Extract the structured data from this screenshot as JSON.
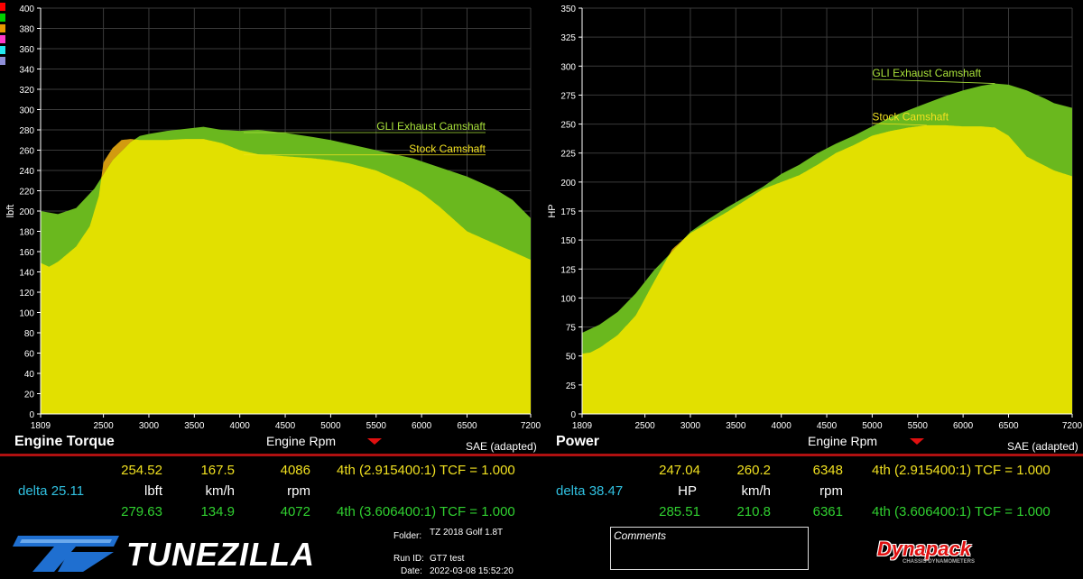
{
  "swatch_colors": [
    "#ff0000",
    "#00d000",
    "#e79a00",
    "#ff3ac8",
    "#22e8f0",
    "#8f8fd8"
  ],
  "colors": {
    "gli_fill": "#6ab81e",
    "stock_fill": "#e2e000",
    "gli_label": "#a8e03a",
    "stock_label": "#f0e020",
    "orange_overlap": "#d29a10"
  },
  "footer": {
    "sae": "SAE (adapted)",
    "torque": {
      "run1": {
        "value": "254.52",
        "speed": "167.5",
        "rpm": "4086",
        "gear": "4th (2.915400:1) TCF = 1.000"
      },
      "delta": "delta 25.11",
      "units": {
        "value": "lbft",
        "speed": "km/h",
        "rpm": "rpm"
      },
      "run2": {
        "value": "279.63",
        "speed": "134.9",
        "rpm": "4072",
        "gear": "4th (3.606400:1) TCF = 1.000"
      }
    },
    "power": {
      "run1": {
        "value": "247.04",
        "speed": "260.2",
        "rpm": "6348",
        "gear": "4th (2.915400:1) TCF = 1.000"
      },
      "delta": "delta 38.47",
      "units": {
        "value": "HP",
        "speed": "km/h",
        "rpm": "rpm"
      },
      "run2": {
        "value": "285.51",
        "speed": "210.8",
        "rpm": "6361",
        "gear": "4th (3.606400:1) TCF = 1.000"
      }
    },
    "brand": "TUNEZILLA",
    "folder_label": "Folder:",
    "folder_value": "TZ 2018 Golf 1.8T",
    "runid_label": "Run ID:",
    "runid_value": "GT7 test",
    "date_label": "Date:",
    "date_value": "2022-03-08 15:52:20",
    "comments_label": "Comments",
    "dynapack": "Dynapack",
    "dynapack_sub": "CHASSIS DYNAMOMETERS"
  },
  "chart_data": [
    {
      "type": "area",
      "title": "Engine Torque",
      "xlabel": "Engine Rpm",
      "ylabel": "lbft",
      "xlim": [
        1809,
        7200
      ],
      "ylim": [
        0,
        400
      ],
      "xticks": [
        1809,
        2500,
        3000,
        3500,
        4000,
        4500,
        5000,
        5500,
        6000,
        6500,
        7200
      ],
      "yticks": [
        0,
        20,
        40,
        60,
        80,
        100,
        120,
        140,
        160,
        180,
        200,
        220,
        240,
        260,
        280,
        300,
        320,
        340,
        360,
        380,
        400
      ],
      "grid": true,
      "series": [
        {
          "name": "GLI Exhaust Camshaft",
          "x": [
            1809,
            2000,
            2200,
            2400,
            2600,
            2800,
            2900,
            3000,
            3200,
            3400,
            3600,
            3800,
            4000,
            4200,
            4500,
            4800,
            5000,
            5300,
            5600,
            5900,
            6200,
            6500,
            6800,
            7000,
            7200
          ],
          "y": [
            200,
            197,
            203,
            222,
            250,
            268,
            274,
            276,
            279,
            281,
            283,
            280,
            279,
            280,
            277,
            273,
            270,
            264,
            258,
            252,
            243,
            234,
            222,
            211,
            193
          ]
        },
        {
          "name": "Stock Camshaft",
          "x": [
            1809,
            1900,
            2000,
            2200,
            2350,
            2450,
            2500,
            2600,
            2700,
            2800,
            2900,
            3000,
            3200,
            3400,
            3600,
            3800,
            4000,
            4200,
            4500,
            4800,
            5000,
            5200,
            5500,
            5800,
            6000,
            6200,
            6500,
            6800,
            7000,
            7200
          ],
          "y": [
            149,
            145,
            150,
            165,
            185,
            215,
            248,
            262,
            270,
            271,
            270,
            270,
            270,
            271,
            271,
            267,
            260,
            256,
            254,
            252,
            250,
            247,
            240,
            228,
            218,
            204,
            180,
            168,
            160,
            152
          ]
        }
      ],
      "annotations": [
        {
          "text": "GLI Exhaust Camshaft",
          "x": 4100,
          "y": 280
        },
        {
          "text": "Stock Camshaft",
          "x": 4100,
          "y": 258
        }
      ]
    },
    {
      "type": "area",
      "title": "Power",
      "xlabel": "Engine Rpm",
      "ylabel": "HP",
      "xlim": [
        1809,
        7200
      ],
      "ylim": [
        0,
        350
      ],
      "xticks": [
        1809,
        2500,
        3000,
        3500,
        4000,
        4500,
        5000,
        5500,
        6000,
        6500,
        7200
      ],
      "yticks": [
        0,
        25,
        50,
        75,
        100,
        125,
        150,
        175,
        200,
        225,
        250,
        275,
        300,
        325,
        350
      ],
      "grid": true,
      "series": [
        {
          "name": "GLI Exhaust Camshaft",
          "x": [
            1809,
            2000,
            2200,
            2400,
            2600,
            2800,
            3000,
            3200,
            3400,
            3600,
            3800,
            4000,
            4200,
            4400,
            4600,
            4800,
            5000,
            5200,
            5400,
            5600,
            5800,
            6000,
            6200,
            6350,
            6500,
            6700,
            6900,
            7000,
            7200
          ],
          "y": [
            70,
            77,
            88,
            104,
            124,
            140,
            157,
            168,
            178,
            187,
            196,
            207,
            215,
            225,
            233,
            240,
            248,
            256,
            262,
            268,
            274,
            279,
            283,
            285,
            284,
            279,
            272,
            268,
            264
          ]
        },
        {
          "name": "Stock Camshaft",
          "x": [
            1809,
            1900,
            2000,
            2200,
            2400,
            2600,
            2800,
            3000,
            3200,
            3400,
            3600,
            3800,
            4000,
            4200,
            4400,
            4600,
            4800,
            5000,
            5200,
            5400,
            5600,
            5800,
            6000,
            6200,
            6350,
            6500,
            6700,
            6900,
            7000,
            7200
          ],
          "y": [
            52,
            53,
            57,
            68,
            85,
            114,
            142,
            156,
            165,
            174,
            184,
            194,
            200,
            206,
            215,
            225,
            232,
            240,
            244,
            247,
            249,
            249,
            248,
            248,
            247,
            240,
            222,
            214,
            210,
            205
          ]
        }
      ],
      "annotations": [
        {
          "text": "GLI Exhaust Camshaft",
          "x": 5000,
          "y": 291
        },
        {
          "text": "Stock Camshaft",
          "x": 5000,
          "y": 253
        }
      ]
    }
  ]
}
